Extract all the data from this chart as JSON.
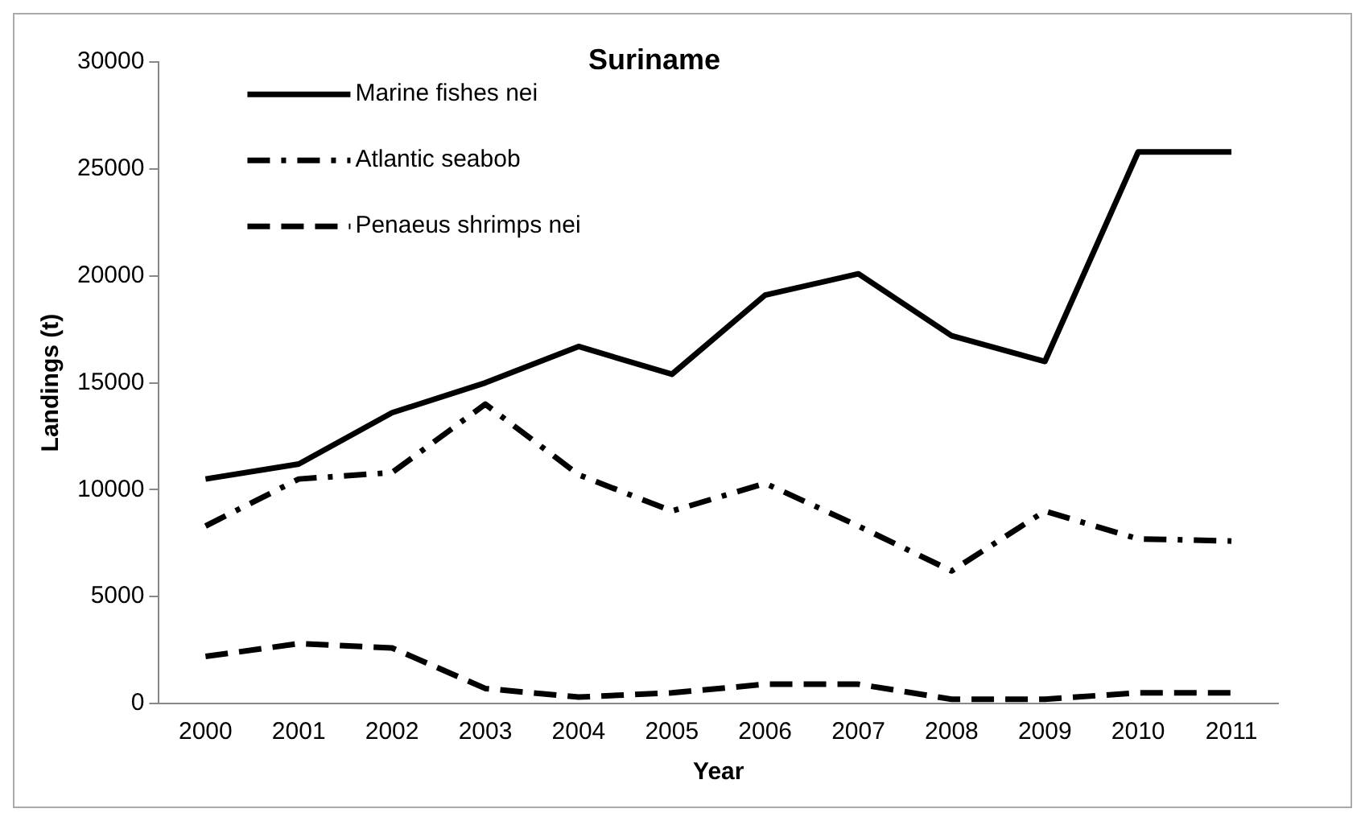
{
  "chart_data": {
    "type": "line",
    "title": "Suriname",
    "xlabel": "Year",
    "ylabel": "Landings (t)",
    "categories": [
      "2000",
      "2001",
      "2002",
      "2003",
      "2004",
      "2005",
      "2006",
      "2007",
      "2008",
      "2009",
      "2010",
      "2011"
    ],
    "ylim": [
      0,
      30000
    ],
    "yticks": [
      0,
      5000,
      10000,
      15000,
      20000,
      25000,
      30000
    ],
    "grid": false,
    "legend": "top left",
    "marker": "none",
    "series": [
      {
        "name": "Marine fishes nei",
        "color": "#000000",
        "line_style": "solid",
        "values": [
          10500,
          11200,
          13600,
          15000,
          16700,
          15400,
          19100,
          20100,
          17200,
          16000,
          25800,
          25800
        ]
      },
      {
        "name": "Atlantic seabob",
        "color": "#000000",
        "line_style": "dashdot",
        "values": [
          8300,
          10500,
          10800,
          14000,
          10700,
          9000,
          10300,
          8300,
          6200,
          9000,
          7700,
          7600
        ]
      },
      {
        "name": "Penaeus shrimps nei",
        "color": "#000000",
        "line_style": "dashed",
        "values": [
          2200,
          2800,
          2600,
          700,
          300,
          500,
          900,
          900,
          200,
          200,
          500,
          500
        ]
      }
    ]
  }
}
